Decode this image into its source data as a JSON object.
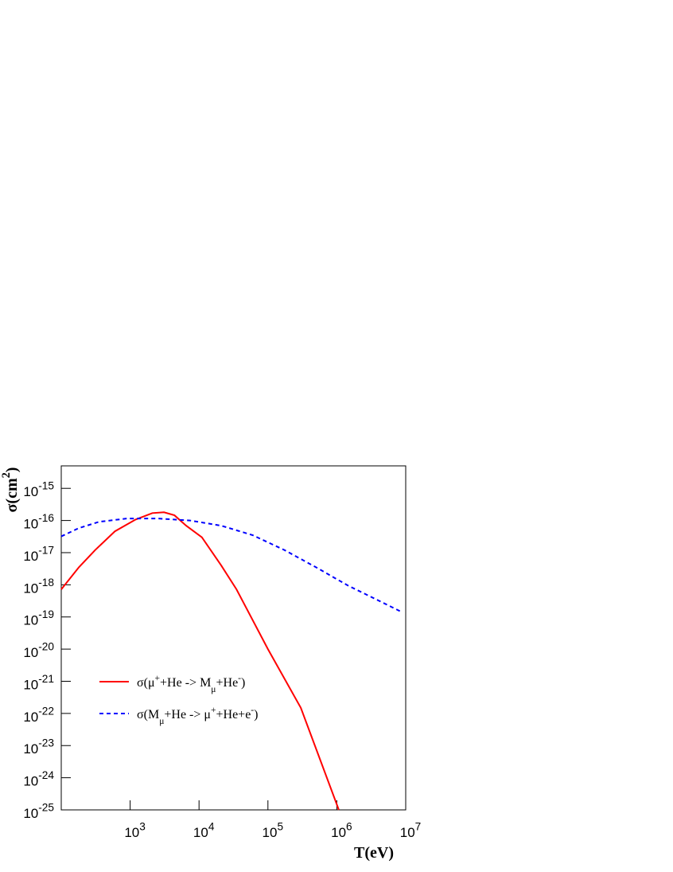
{
  "chart_data": {
    "type": "line",
    "x_label": "T(eV)",
    "y_label": [
      "σ(cm",
      "2",
      ")"
    ],
    "log_x": true,
    "log_y": true,
    "xlim": [
      100,
      10000000
    ],
    "ylim": [
      1e-25,
      5e-15
    ],
    "xticks": [
      {
        "value": 1000,
        "label": [
          "10",
          "3"
        ]
      },
      {
        "value": 10000,
        "label": [
          "10",
          "4"
        ]
      },
      {
        "value": 100000,
        "label": [
          "10",
          "5"
        ]
      },
      {
        "value": 1000000,
        "label": [
          "10",
          "6"
        ]
      },
      {
        "value": 10000000,
        "label": [
          "10",
          "7"
        ]
      }
    ],
    "yticks": [
      {
        "value": 1e-25,
        "label": [
          "10",
          "-25"
        ]
      },
      {
        "value": 1e-24,
        "label": [
          "10",
          "-24"
        ]
      },
      {
        "value": 1e-23,
        "label": [
          "10",
          "-23"
        ]
      },
      {
        "value": 1e-22,
        "label": [
          "10",
          "-22"
        ]
      },
      {
        "value": 1e-21,
        "label": [
          "10",
          "-21"
        ]
      },
      {
        "value": 1e-20,
        "label": [
          "10",
          "-20"
        ]
      },
      {
        "value": 1e-19,
        "label": [
          "10",
          "-19"
        ]
      },
      {
        "value": 1e-18,
        "label": [
          "10",
          "-18"
        ]
      },
      {
        "value": 1e-17,
        "label": [
          "10",
          "-17"
        ]
      },
      {
        "value": 1e-16,
        "label": [
          "10",
          "-16"
        ]
      },
      {
        "value": 1e-15,
        "label": [
          "10",
          "-15"
        ]
      }
    ],
    "series": [
      {
        "name": [
          "σ(μ",
          "+",
          "+He -> M",
          "μ",
          "+He",
          "-",
          ")"
        ],
        "color": "#ff0000",
        "dashed": false,
        "x": [
          100,
          180,
          310,
          600,
          1200,
          2100,
          3100,
          4400,
          6500,
          11000,
          21000,
          35000,
          100000,
          300000,
          1070000
        ],
        "values": [
          7.2e-19,
          3.5e-18,
          1.2e-17,
          4.6e-17,
          1.07e-16,
          1.7e-16,
          1.8e-16,
          1.45e-16,
          6.9e-17,
          3e-17,
          4e-18,
          7.2e-19,
          1e-20,
          1.5e-22,
          1e-25
        ]
      },
      {
        "name": [
          "σ(M",
          "μ",
          "+He -> μ",
          "+",
          "+He+e",
          "-",
          ")"
        ],
        "color": "#0000ff",
        "dashed": true,
        "x": [
          100,
          180,
          355,
          890,
          2570,
          7400,
          21000,
          60000,
          174000,
          500000,
          1450000,
          4200000,
          8900000
        ],
        "values": [
          3.2e-17,
          5.8e-17,
          9.1e-17,
          1.15e-16,
          1.15e-16,
          1e-16,
          6.9e-17,
          3.5e-17,
          1.2e-17,
          3.5e-18,
          9.5e-19,
          3.1e-19,
          1.4e-19
        ]
      }
    ]
  }
}
